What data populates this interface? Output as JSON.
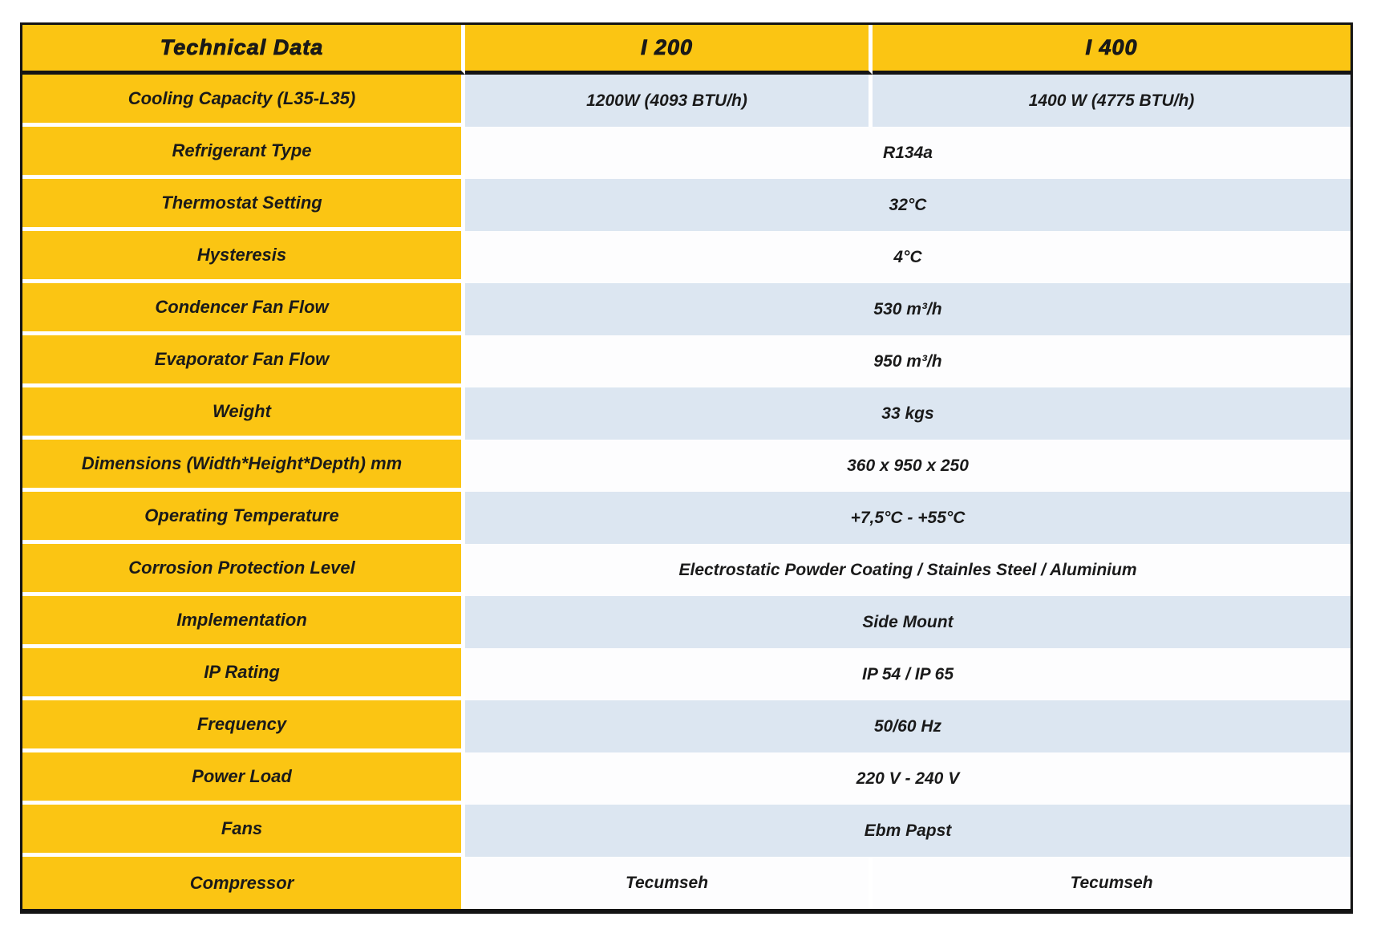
{
  "header": {
    "title": "Technical Data",
    "model_1": "I 200",
    "model_2": "I 400"
  },
  "rows": [
    {
      "label": "Cooling Capacity (L35-L35)",
      "value_model_1": "1200W (4093 BTU/h)",
      "value_model_2": "1400 W (4775 BTU/h)"
    },
    {
      "label": "Refrigerant Type",
      "value": "R134a"
    },
    {
      "label": "Thermostat Setting",
      "value": "32°C"
    },
    {
      "label": "Hysteresis",
      "value": "4°C"
    },
    {
      "label": "Condencer Fan Flow",
      "value": "530 m³/h"
    },
    {
      "label": "Evaporator Fan Flow",
      "value": "950 m³/h"
    },
    {
      "label": "Weight",
      "value": "33 kgs"
    },
    {
      "label": "Dimensions (Width*Height*Depth) mm",
      "value": "360 x 950 x 250"
    },
    {
      "label": "Operating Temperature",
      "value": "+7,5°C - +55°C"
    },
    {
      "label": "Corrosion Protection Level",
      "value": "Electrostatic Powder Coating / Stainles Steel / Aluminium"
    },
    {
      "label": "Implementation",
      "value": "Side Mount"
    },
    {
      "label": "IP Rating",
      "value": "IP 54 / IP 65"
    },
    {
      "label": "Frequency",
      "value": "50/60 Hz"
    },
    {
      "label": "Power Load",
      "value": "220 V - 240 V"
    },
    {
      "label": "Fans",
      "value": "Ebm Papst"
    },
    {
      "label": "Compressor",
      "value_model_1": "Tecumseh",
      "value_model_2": "Tecumseh"
    }
  ],
  "colors": {
    "header_yellow": "#fbc513",
    "row_blue": "#dce6f1",
    "row_white": "#fdfdfe",
    "border_black": "#141414",
    "text": "#1a1a1a"
  }
}
